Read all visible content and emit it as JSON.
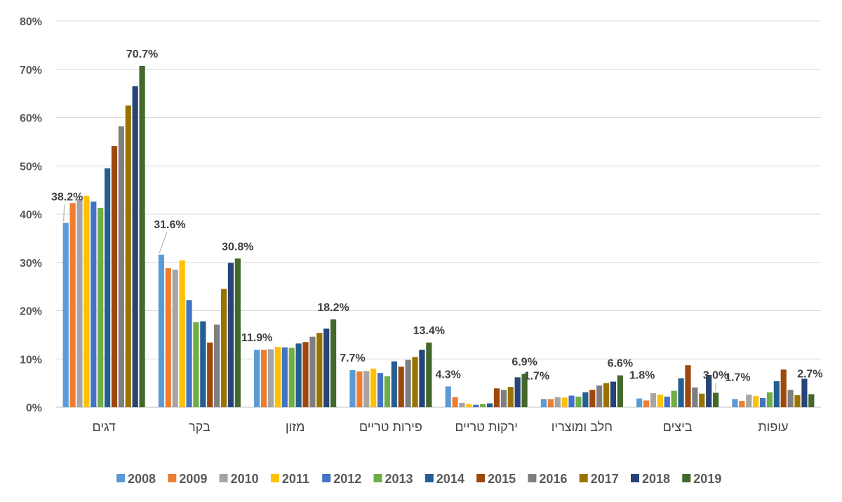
{
  "chart_data": {
    "type": "bar",
    "title": "",
    "xlabel": "",
    "ylabel": "",
    "ylim": [
      0,
      80
    ],
    "y_tick_format": "percent",
    "y_ticks": [
      0,
      10,
      20,
      30,
      40,
      50,
      60,
      70,
      80
    ],
    "y_tick_labels": [
      "0%",
      "10%",
      "20%",
      "30%",
      "40%",
      "50%",
      "60%",
      "70%",
      "80%"
    ],
    "grid": true,
    "legend_position": "bottom",
    "categories": [
      "דגים",
      "בקר",
      "מזון",
      "פירות טריים",
      "ירקות טריים",
      "חלב ומוצריו",
      "ביצים",
      "עופות"
    ],
    "series": [
      {
        "name": "2008",
        "color": "#5B9BD5",
        "values": [
          38.2,
          31.6,
          11.9,
          7.7,
          4.3,
          1.7,
          1.8,
          1.7
        ]
      },
      {
        "name": "2009",
        "color": "#ED7D31",
        "values": [
          42.3,
          28.8,
          11.9,
          7.4,
          2.1,
          1.7,
          1.4,
          1.3
        ]
      },
      {
        "name": "2010",
        "color": "#A5A5A5",
        "values": [
          43.1,
          28.5,
          12.0,
          7.5,
          0.9,
          2.1,
          2.9,
          2.6
        ]
      },
      {
        "name": "2011",
        "color": "#FFC000",
        "values": [
          43.8,
          30.4,
          12.5,
          8.0,
          0.7,
          2.0,
          2.6,
          2.3
        ]
      },
      {
        "name": "2012",
        "color": "#4472C4",
        "values": [
          42.6,
          22.2,
          12.4,
          7.1,
          0.5,
          2.4,
          2.2,
          1.9
        ]
      },
      {
        "name": "2013",
        "color": "#70AD47",
        "values": [
          41.3,
          17.6,
          12.3,
          6.4,
          0.7,
          2.2,
          3.4,
          3.1
        ]
      },
      {
        "name": "2014",
        "color": "#255E91",
        "values": [
          49.5,
          17.8,
          13.2,
          9.5,
          0.8,
          3.1,
          6.0,
          5.4
        ]
      },
      {
        "name": "2015",
        "color": "#9E480E",
        "values": [
          54.1,
          13.4,
          13.5,
          8.4,
          3.9,
          3.6,
          8.7,
          7.8
        ]
      },
      {
        "name": "2016",
        "color": "#7F7F7F",
        "values": [
          58.2,
          17.1,
          14.6,
          9.8,
          3.6,
          4.5,
          4.1,
          3.6
        ]
      },
      {
        "name": "2017",
        "color": "#997300",
        "values": [
          62.5,
          24.5,
          15.4,
          10.4,
          4.2,
          5.0,
          2.8,
          2.5
        ]
      },
      {
        "name": "2018",
        "color": "#264478",
        "values": [
          66.5,
          29.9,
          16.3,
          11.9,
          6.2,
          5.3,
          6.7,
          5.9
        ]
      },
      {
        "name": "2019",
        "color": "#43682B",
        "values": [
          70.7,
          30.8,
          18.2,
          13.4,
          6.9,
          6.6,
          3.0,
          2.7
        ]
      }
    ],
    "annotations": [
      {
        "category": "דגים",
        "series": "2008",
        "text": "38.2%"
      },
      {
        "category": "דגים",
        "series": "2019",
        "text": "70.7%"
      },
      {
        "category": "בקר",
        "series": "2008",
        "text": "31.6%"
      },
      {
        "category": "בקר",
        "series": "2019",
        "text": "30.8%"
      },
      {
        "category": "מזון",
        "series": "2008",
        "text": "11.9%"
      },
      {
        "category": "מזון",
        "series": "2019",
        "text": "18.2%"
      },
      {
        "category": "פירות טריים",
        "series": "2008",
        "text": "7.7%"
      },
      {
        "category": "פירות טריים",
        "series": "2019",
        "text": "13.4%"
      },
      {
        "category": "ירקות טריים",
        "series": "2008",
        "text": "4.3%"
      },
      {
        "category": "ירקות טריים",
        "series": "2019",
        "text": "6.9%"
      },
      {
        "category": "חלב ומוצריו",
        "series": "2008",
        "text": "1.7%"
      },
      {
        "category": "חלב ומוצריו",
        "series": "2019",
        "text": "6.6%"
      },
      {
        "category": "ביצים",
        "series": "2008",
        "text": "1.8%"
      },
      {
        "category": "ביצים",
        "series": "2019",
        "text": "3.0%"
      },
      {
        "category": "עופות",
        "series": "2008",
        "text": "1.7%"
      },
      {
        "category": "עופות",
        "series": "2019",
        "text": "2.7%"
      }
    ]
  }
}
